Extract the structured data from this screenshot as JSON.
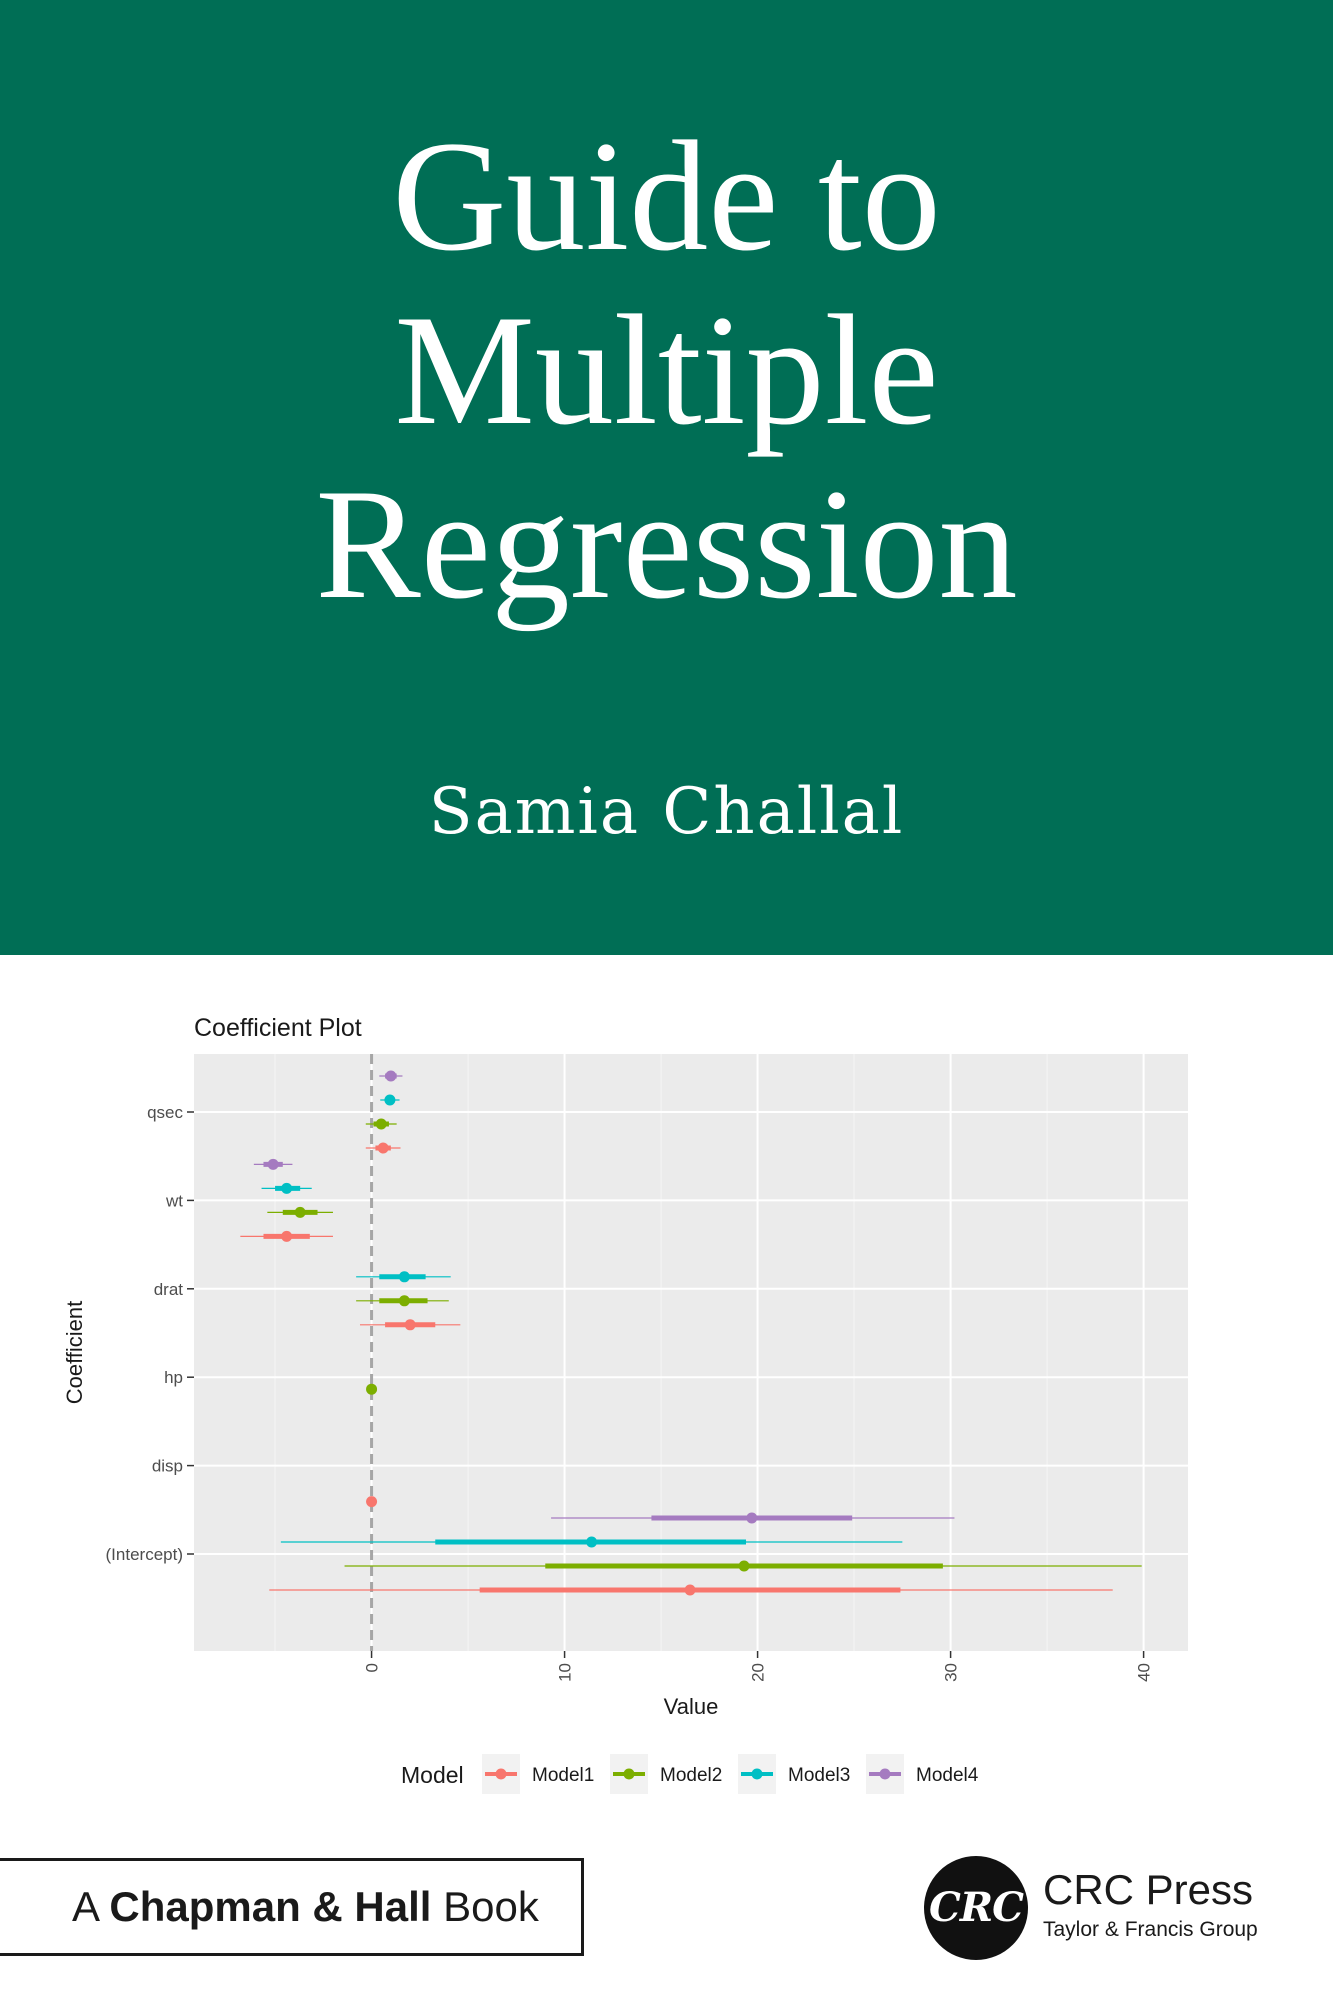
{
  "cover": {
    "background": "#006E55",
    "title_lines": [
      "Guide to",
      "Multiple",
      "Regression"
    ],
    "author": "Samia Challal"
  },
  "series_box": {
    "prefix": "A",
    "bold": "Chapman & Hall",
    "suffix": "Book"
  },
  "publisher": {
    "logo_text": "CRC",
    "name": "CRC Press",
    "subtitle": "Taylor & Francis Group"
  },
  "chart_data": {
    "type": "scatter",
    "title": "Coefficient Plot",
    "xlabel": "Value",
    "ylabel": "Coefficient",
    "xlim": [
      -9.2,
      42.3
    ],
    "xticks": [
      0,
      10,
      20,
      30,
      40
    ],
    "categories": [
      "(Intercept)",
      "disp",
      "hp",
      "drat",
      "wt",
      "qsec"
    ],
    "legend_title": "Model",
    "legend_position": "bottom",
    "reference_line_x": 0,
    "grid": true,
    "series": [
      {
        "name": "Model1",
        "color": "#F8766D",
        "points": [
          {
            "coef": "qsec",
            "est": 0.6,
            "lo1": 0.2,
            "hi1": 1.0,
            "lo2": -0.3,
            "hi2": 1.5
          },
          {
            "coef": "wt",
            "est": -4.4,
            "lo1": -5.6,
            "hi1": -3.2,
            "lo2": -6.8,
            "hi2": -2.0
          },
          {
            "coef": "drat",
            "est": 2.0,
            "lo1": 0.7,
            "hi1": 3.3,
            "lo2": -0.6,
            "hi2": 4.6
          },
          {
            "coef": "disp",
            "est": 0.0,
            "lo1": -0.01,
            "hi1": 0.01,
            "lo2": -0.02,
            "hi2": 0.02
          },
          {
            "coef": "(Intercept)",
            "est": 16.5,
            "lo1": 5.6,
            "hi1": 27.4,
            "lo2": -5.3,
            "hi2": 38.4
          }
        ]
      },
      {
        "name": "Model2",
        "color": "#7CAE00",
        "points": [
          {
            "coef": "qsec",
            "est": 0.5,
            "lo1": 0.1,
            "hi1": 0.9,
            "lo2": -0.3,
            "hi2": 1.3
          },
          {
            "coef": "wt",
            "est": -3.7,
            "lo1": -4.6,
            "hi1": -2.8,
            "lo2": -5.4,
            "hi2": -2.0
          },
          {
            "coef": "drat",
            "est": 1.7,
            "lo1": 0.4,
            "hi1": 2.9,
            "lo2": -0.8,
            "hi2": 4.0
          },
          {
            "coef": "hp",
            "est": 0.0,
            "lo1": -0.01,
            "hi1": 0.01,
            "lo2": -0.03,
            "hi2": 0.03
          },
          {
            "coef": "(Intercept)",
            "est": 19.3,
            "lo1": 9.0,
            "hi1": 29.6,
            "lo2": -1.4,
            "hi2": 39.9
          }
        ]
      },
      {
        "name": "Model3",
        "color": "#00BFC4",
        "points": [
          {
            "coef": "qsec",
            "est": 0.95,
            "lo1": 0.7,
            "hi1": 1.2,
            "lo2": 0.45,
            "hi2": 1.45
          },
          {
            "coef": "wt",
            "est": -4.4,
            "lo1": -5.0,
            "hi1": -3.7,
            "lo2": -5.7,
            "hi2": -3.1
          },
          {
            "coef": "drat",
            "est": 1.7,
            "lo1": 0.4,
            "hi1": 2.8,
            "lo2": -0.8,
            "hi2": 4.1
          },
          {
            "coef": "(Intercept)",
            "est": 11.4,
            "lo1": 3.3,
            "hi1": 19.4,
            "lo2": -4.7,
            "hi2": 27.5
          }
        ]
      },
      {
        "name": "Model4",
        "color": "#A57BC0",
        "points": [
          {
            "coef": "qsec",
            "est": 1.0,
            "lo1": 0.7,
            "hi1": 1.3,
            "lo2": 0.4,
            "hi2": 1.6
          },
          {
            "coef": "wt",
            "est": -5.1,
            "lo1": -5.6,
            "hi1": -4.6,
            "lo2": -6.1,
            "hi2": -4.1
          },
          {
            "coef": "(Intercept)",
            "est": 19.7,
            "lo1": 14.5,
            "hi1": 24.9,
            "lo2": 9.3,
            "hi2": 30.2
          }
        ]
      }
    ]
  }
}
